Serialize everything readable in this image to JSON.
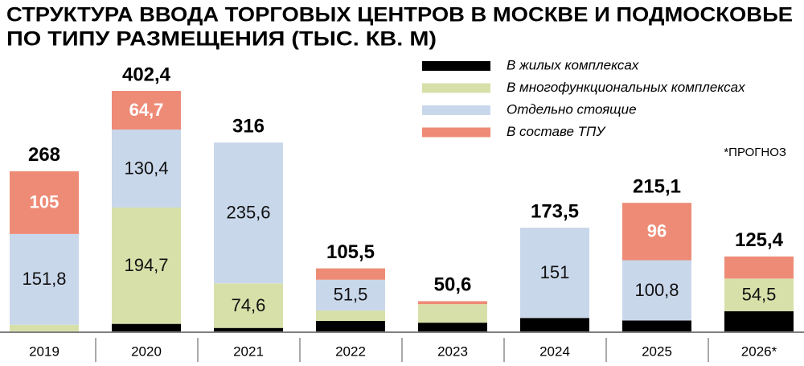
{
  "chart_data": {
    "type": "stacked-bar",
    "title": [
      "СТРУКТУРА ВВОДА ТОРГОВЫХ ЦЕНТРОВ В МОСКВЕ И ПОДМОСКОВЬЕ",
      "ПО ТИПУ РАЗМЕЩЕНИЯ (ТЫС. КВ. М)"
    ],
    "note": "*ПРОГНОЗ",
    "categories": [
      "2019",
      "2020",
      "2021",
      "2022",
      "2023",
      "2024",
      "2025",
      "2026*"
    ],
    "series": [
      {
        "name": "В жилых комплексах",
        "color": "#000000",
        "values": [
          0,
          12.6,
          5.8,
          17.5,
          14.6,
          22.5,
          18.3,
          33.9
        ],
        "value_labels": [
          null,
          null,
          null,
          null,
          null,
          null,
          null,
          null
        ]
      },
      {
        "name": "В многофункциональных комплексах",
        "color": "#d8e0aa",
        "values": [
          11.2,
          194.7,
          74.6,
          17.5,
          31,
          0,
          0,
          54.5
        ],
        "value_labels": [
          null,
          "194,7",
          "74,6",
          null,
          null,
          null,
          null,
          "54,5"
        ]
      },
      {
        "name": "Отдельно стоящие",
        "color": "#c9d7eb",
        "values": [
          151.8,
          130.4,
          235.6,
          51.5,
          0,
          151,
          100.8,
          0
        ],
        "value_labels": [
          "151,8",
          "130,4",
          "235,6",
          "51,5",
          null,
          "151",
          "100,8",
          null
        ]
      },
      {
        "name": "В составе ТПУ",
        "color": "#ee8b76",
        "values": [
          105,
          64.7,
          0,
          19,
          5,
          0,
          96,
          37
        ],
        "value_labels": [
          "105",
          "64,7",
          null,
          null,
          null,
          null,
          "96",
          null
        ]
      }
    ],
    "totals": [
      268,
      402.4,
      316,
      105.5,
      50.6,
      173.5,
      215.1,
      125.4
    ],
    "total_labels": [
      "268",
      "402,4",
      "316",
      "105,5",
      "50,6",
      "173,5",
      "215,1",
      "125,4"
    ]
  }
}
